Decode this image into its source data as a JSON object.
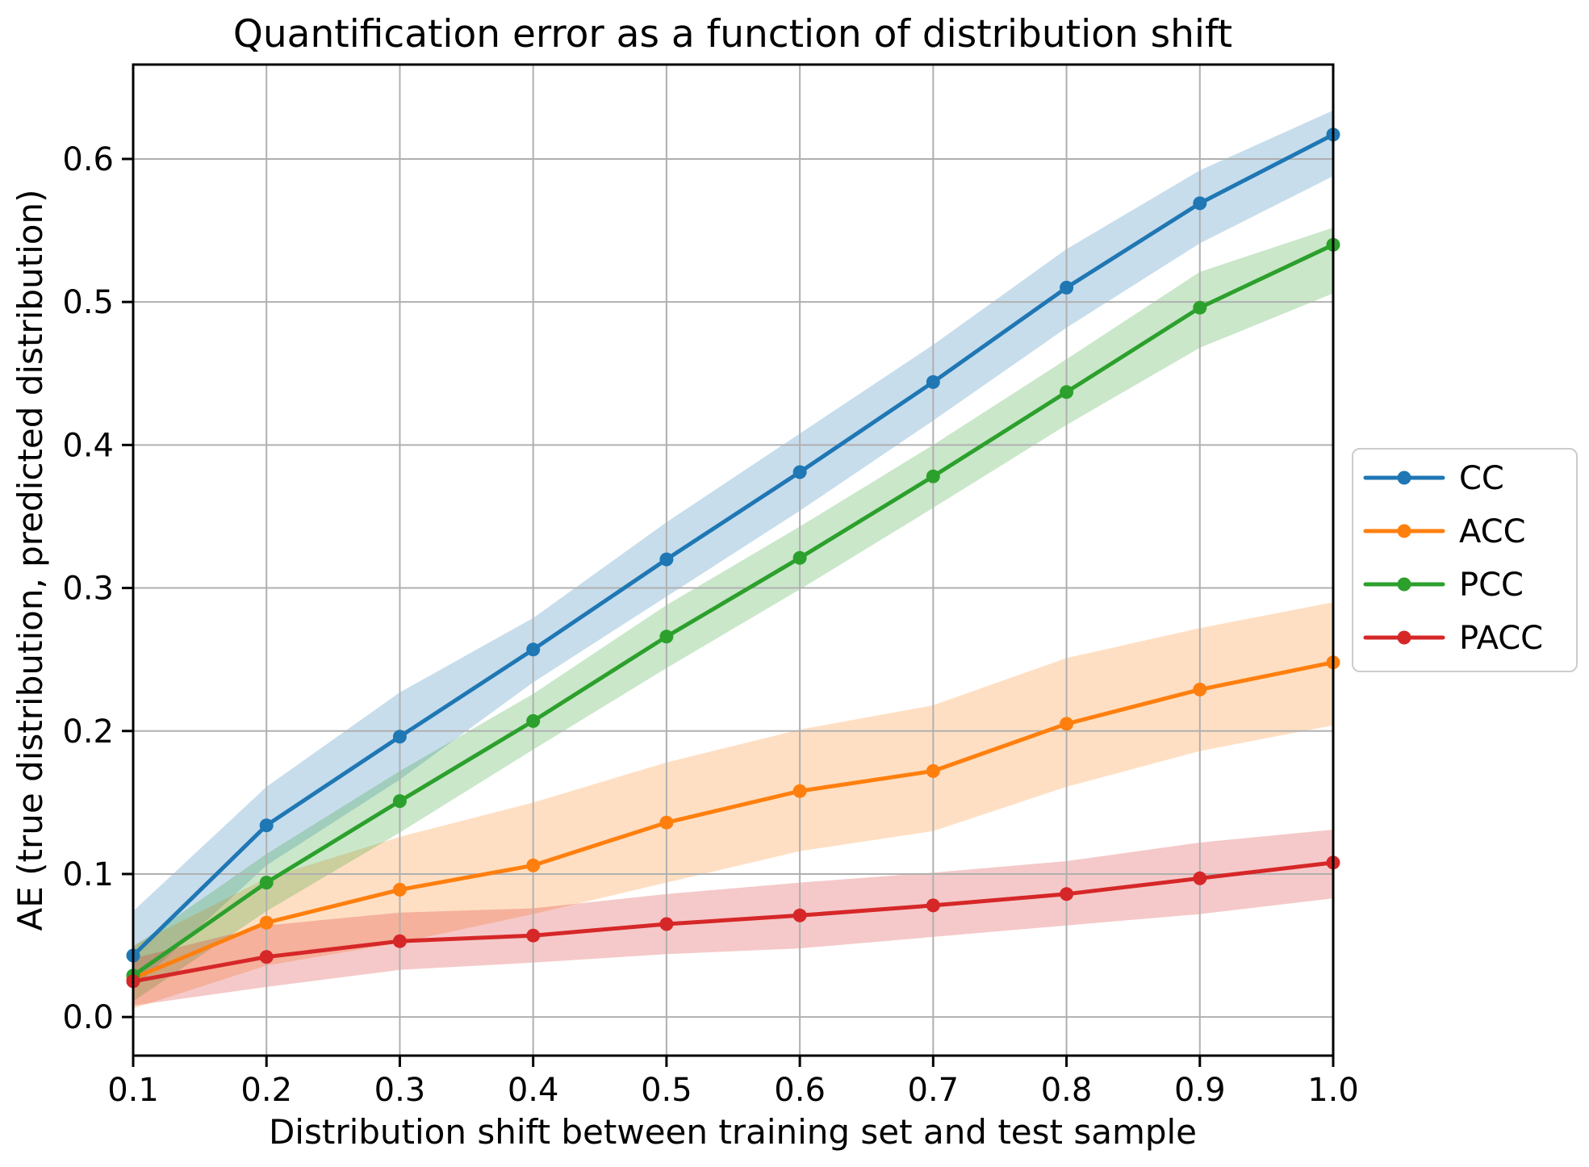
{
  "figure": {
    "background": "#ffffff",
    "grid_color": "#b0b0b0",
    "spine_color": "#000000",
    "tick_color": "#000000",
    "legend_border_color": "#cccccc",
    "legend_background": "#ffffff"
  },
  "chart_data": {
    "type": "line",
    "title": "Quantification error as a function of distribution shift",
    "xlabel": "Distribution shift between training set and test sample",
    "ylabel": "AE (true distribution, predicted distribution)",
    "grid": true,
    "legend_position": "right-outside",
    "xlim": [
      0.1,
      1.0
    ],
    "ylim": [
      -0.027,
      0.666
    ],
    "x": [
      0.1,
      0.2,
      0.3,
      0.4,
      0.5,
      0.6,
      0.7,
      0.8,
      0.9,
      1.0
    ],
    "x_tick_labels": [
      "0.1",
      "0.2",
      "0.3",
      "0.4",
      "0.5",
      "0.6",
      "0.7",
      "0.8",
      "0.9",
      "1.0"
    ],
    "y_tick_values": [
      0.0,
      0.1,
      0.2,
      0.3,
      0.4,
      0.5,
      0.6
    ],
    "y_tick_labels": [
      "0.0",
      "0.1",
      "0.2",
      "0.3",
      "0.4",
      "0.5",
      "0.6"
    ],
    "band_alpha": 0.25,
    "series": [
      {
        "name": "CC",
        "color": "#1f77b4",
        "values": [
          0.043,
          0.134,
          0.196,
          0.257,
          0.32,
          0.381,
          0.444,
          0.51,
          0.569,
          0.617
        ],
        "band_low": [
          0.02,
          0.106,
          0.166,
          0.234,
          0.294,
          0.354,
          0.417,
          0.482,
          0.541,
          0.588
        ],
        "band_high": [
          0.074,
          0.161,
          0.227,
          0.279,
          0.346,
          0.408,
          0.47,
          0.537,
          0.592,
          0.634
        ]
      },
      {
        "name": "ACC",
        "color": "#ff7f0e",
        "values": [
          0.027,
          0.066,
          0.089,
          0.106,
          0.136,
          0.158,
          0.172,
          0.205,
          0.229,
          0.248
        ],
        "band_low": [
          0.006,
          0.036,
          0.052,
          0.072,
          0.094,
          0.116,
          0.13,
          0.161,
          0.186,
          0.204
        ],
        "band_high": [
          0.05,
          0.097,
          0.126,
          0.15,
          0.178,
          0.201,
          0.218,
          0.251,
          0.272,
          0.29
        ]
      },
      {
        "name": "PCC",
        "color": "#2ca02c",
        "values": [
          0.029,
          0.094,
          0.151,
          0.207,
          0.266,
          0.321,
          0.378,
          0.437,
          0.496,
          0.54
        ],
        "band_low": [
          0.011,
          0.074,
          0.129,
          0.187,
          0.244,
          0.299,
          0.356,
          0.414,
          0.468,
          0.506
        ],
        "band_high": [
          0.049,
          0.114,
          0.172,
          0.226,
          0.288,
          0.343,
          0.4,
          0.46,
          0.521,
          0.552
        ]
      },
      {
        "name": "PACC",
        "color": "#d62728",
        "values": [
          0.025,
          0.042,
          0.053,
          0.057,
          0.065,
          0.071,
          0.078,
          0.086,
          0.097,
          0.108
        ],
        "band_low": [
          0.008,
          0.021,
          0.033,
          0.038,
          0.044,
          0.048,
          0.056,
          0.064,
          0.072,
          0.083
        ],
        "band_high": [
          0.041,
          0.064,
          0.073,
          0.076,
          0.086,
          0.094,
          0.101,
          0.109,
          0.122,
          0.131
        ]
      }
    ]
  }
}
